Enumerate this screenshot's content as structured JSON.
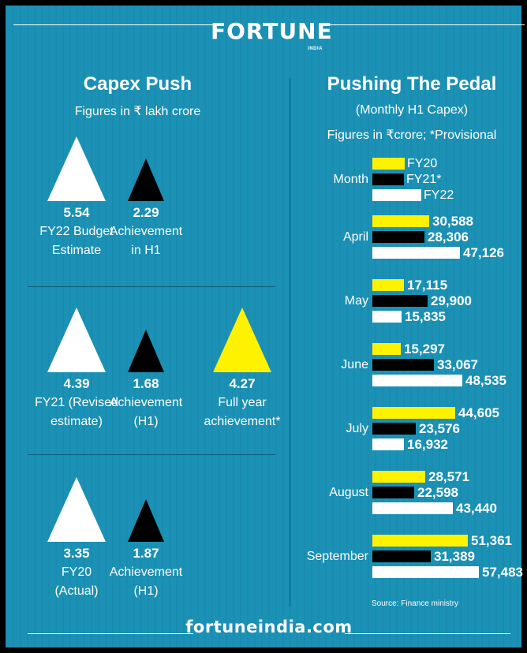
{
  "brand": {
    "logo": "FORTUNE",
    "logo_sub": "INDIA",
    "footer_url": "fortuneindia.com"
  },
  "left_panel": {
    "title": "Capex Push",
    "subtitle": "Figures in ₹  lakh crore",
    "groups": [
      {
        "items": [
          {
            "value": "5.54",
            "label_lines": [
              "FY22 Budget",
              "Estimate"
            ],
            "color": "#ffffff",
            "size": "large"
          },
          {
            "value": "2.29",
            "label_lines": [
              "Achievement",
              "in H1"
            ],
            "color": "#000000",
            "size": "small"
          }
        ]
      },
      {
        "items": [
          {
            "value": "4.39",
            "label_lines": [
              "FY21 (Revised",
              "estimate)"
            ],
            "color": "#ffffff",
            "size": "large"
          },
          {
            "value": "1.68",
            "label_lines": [
              "Achievement",
              "(H1)"
            ],
            "color": "#000000",
            "size": "small"
          },
          {
            "value": "4.27",
            "label_lines": [
              "Full year",
              "achievement*"
            ],
            "color": "#fff200",
            "size": "large"
          }
        ]
      },
      {
        "items": [
          {
            "value": "3.35",
            "label_lines": [
              "FY20",
              "(Actual)"
            ],
            "color": "#ffffff",
            "size": "large"
          },
          {
            "value": "1.87",
            "label_lines": [
              "Achievement",
              "(H1)"
            ],
            "color": "#000000",
            "size": "small"
          }
        ]
      }
    ]
  },
  "right_panel": {
    "title": "Pushing The Pedal",
    "subtitle1": "(Monthly H1  Capex)",
    "subtitle2": "Figures in ₹crore; *Provisional",
    "legend_label": "Month",
    "source": "Source: Finance ministry"
  },
  "chart_data": {
    "type": "bar",
    "title": "Pushing The Pedal",
    "subtitle": "(Monthly H1  Capex)",
    "units_note": "Figures in ₹crore; *Provisional",
    "categories": [
      "April",
      "May",
      "June",
      "July",
      "August",
      "September"
    ],
    "series": [
      {
        "name": "FY20",
        "color": "#fff200",
        "values": [
          30588,
          17115,
          15297,
          44605,
          28571,
          51361
        ],
        "labels": [
          "30,588",
          "17,115",
          "15,297",
          "44,605",
          "28,571",
          "51,361"
        ]
      },
      {
        "name": "FY21*",
        "color": "#000000",
        "values": [
          28306,
          29900,
          33067,
          23576,
          22598,
          31389
        ],
        "labels": [
          "28,306",
          "29,900",
          "33,067",
          "23,576",
          "22,598",
          "31,389"
        ]
      },
      {
        "name": "FY22",
        "color": "#ffffff",
        "values": [
          47126,
          15835,
          48535,
          16932,
          43440,
          57483
        ],
        "labels": [
          "47,126",
          "15,835",
          "48,535",
          "16,932",
          "43,440",
          "57,483"
        ]
      }
    ],
    "orientation": "horizontal",
    "xlim": [
      0,
      57483
    ],
    "grid": false,
    "legend_position": "top"
  }
}
